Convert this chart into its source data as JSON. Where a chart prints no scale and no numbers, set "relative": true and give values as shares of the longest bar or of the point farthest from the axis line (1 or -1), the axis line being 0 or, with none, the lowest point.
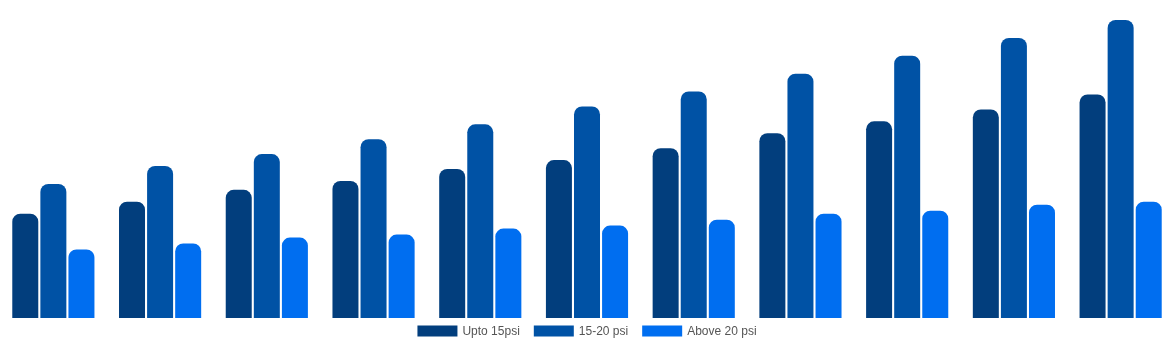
{
  "chart_data": {
    "type": "bar",
    "relative": true,
    "categories": [
      null,
      null,
      null,
      null,
      null,
      null,
      null,
      null,
      null,
      null,
      null
    ],
    "series": [
      {
        "name": "Upto 15psi",
        "color": "#023e7d",
        "values": [
          0.35,
          0.39,
          0.43,
          0.46,
          0.5,
          0.53,
          0.57,
          0.62,
          0.66,
          0.7,
          0.75
        ]
      },
      {
        "name": "15-20 psi",
        "color": "#0052a5",
        "values": [
          0.45,
          0.51,
          0.55,
          0.6,
          0.65,
          0.71,
          0.76,
          0.82,
          0.88,
          0.94,
          1
        ]
      },
      {
        "name": "Above 20 psi",
        "color": "#006ef0",
        "values": [
          0.23,
          0.25,
          0.27,
          0.28,
          0.3,
          0.31,
          0.33,
          0.35,
          0.36,
          0.38,
          0.39
        ]
      }
    ],
    "legend": "bottom"
  }
}
